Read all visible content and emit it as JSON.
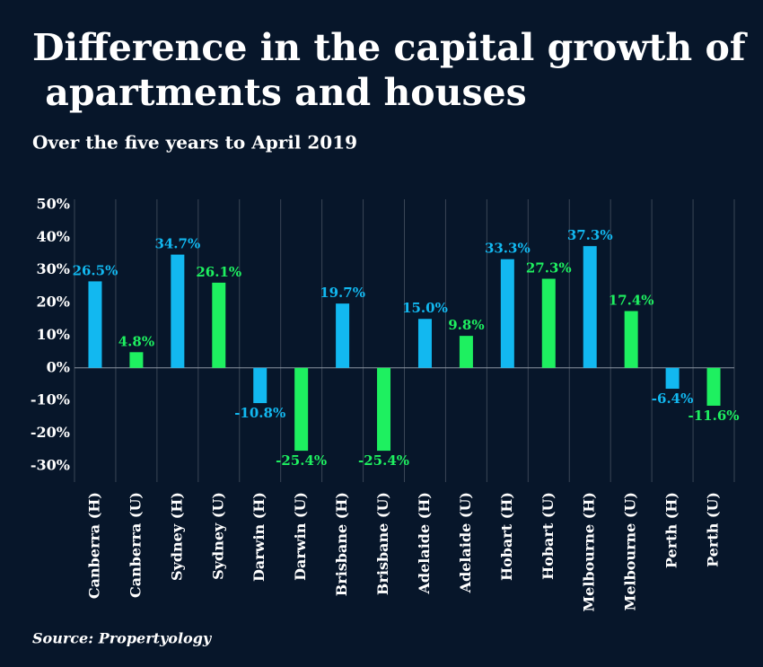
{
  "chart_data": {
    "type": "bar",
    "title": "Difference in the capital growth of apartments and houses",
    "subtitle": "Over the five years to April 2019",
    "source": "Source: Propertyology",
    "categories": [
      "Canberra (H)",
      "Canberra (U)",
      "Sydney (H)",
      "Sydney (U)",
      "Darwin (H)",
      "Darwin (U)",
      "Brisbane (H)",
      "Brisbane (U)",
      "Adelaide (H)",
      "Adelaide (U)",
      "Hobart (H)",
      "Hobart (U)",
      "Melbourne (H)",
      "Melbourne (U)",
      "Perth (H)",
      "Perth (U)"
    ],
    "values": [
      26.5,
      4.8,
      34.7,
      26.1,
      -10.8,
      -25.4,
      19.7,
      -25.4,
      15.0,
      9.8,
      33.3,
      27.3,
      37.3,
      17.4,
      -6.4,
      -11.6
    ],
    "value_labels": [
      "26.5%",
      "4.8%",
      "34.7%",
      "26.1%",
      "-10.8%",
      "-25.4%",
      "19.7%",
      "-25.4%",
      "15.0%",
      "9.8%",
      "33.3%",
      "27.3%",
      "37.3%",
      "17.4%",
      "-6.4%",
      "-11.6%"
    ],
    "colors": [
      "#12b8f0",
      "#1ef060",
      "#12b8f0",
      "#1ef060",
      "#12b8f0",
      "#1ef060",
      "#12b8f0",
      "#1ef060",
      "#12b8f0",
      "#1ef060",
      "#12b8f0",
      "#1ef060",
      "#12b8f0",
      "#1ef060",
      "#12b8f0",
      "#1ef060"
    ],
    "ylim": [
      -35,
      50
    ],
    "yticks": [
      {
        "value": 50,
        "label": "50%"
      },
      {
        "value": 40,
        "label": "40%"
      },
      {
        "value": 30,
        "label": "30%"
      },
      {
        "value": 20,
        "label": "20%"
      },
      {
        "value": 10,
        "label": "10%"
      },
      {
        "value": 0,
        "label": "0%"
      },
      {
        "value": -10,
        "label": "-10%"
      },
      {
        "value": -20,
        "label": "-20%"
      },
      {
        "value": -30,
        "label": "-30%"
      }
    ]
  }
}
